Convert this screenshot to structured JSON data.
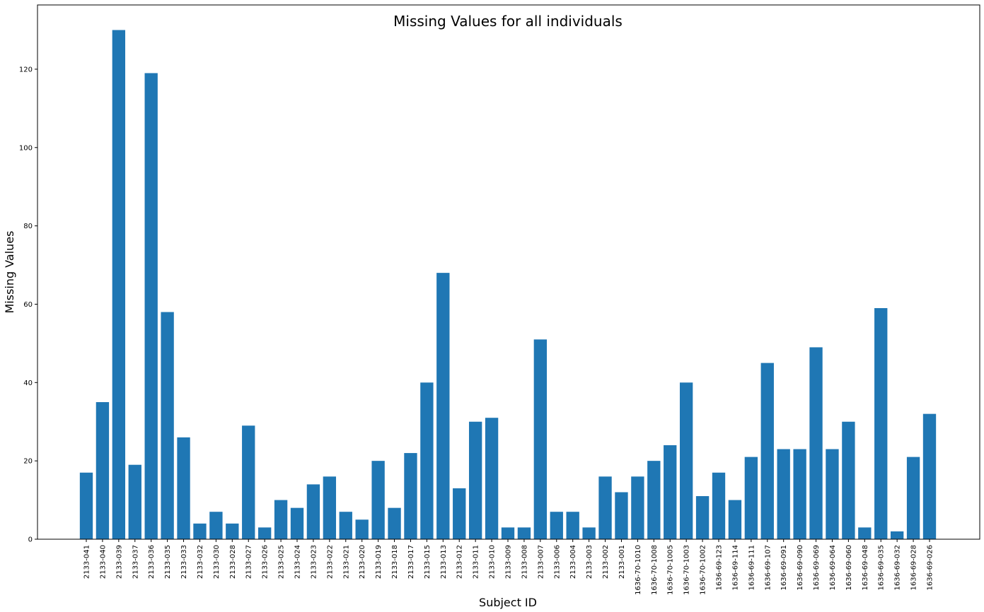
{
  "chart_data": {
    "type": "bar",
    "title": "Missing Values for all individuals",
    "xlabel": "Subject ID",
    "ylabel": "Missing Values",
    "ylim": [
      0,
      130
    ],
    "yticks": [
      0,
      20,
      40,
      60,
      80,
      100,
      120
    ],
    "grid": false,
    "bar_color": "#1f77b4",
    "categories": [
      "2133-041",
      "2133-040",
      "2133-039",
      "2133-037",
      "2133-036",
      "2133-035",
      "2133-033",
      "2133-032",
      "2133-030",
      "2133-028",
      "2133-027",
      "2133-026",
      "2133-025",
      "2133-024",
      "2133-023",
      "2133-022",
      "2133-021",
      "2133-020",
      "2133-019",
      "2133-018",
      "2133-017",
      "2133-015",
      "2133-013",
      "2133-012",
      "2133-011",
      "2133-010",
      "2133-009",
      "2133-008",
      "2133-007",
      "2133-006",
      "2133-004",
      "2133-003",
      "2133-002",
      "2133-001",
      "1636-70-1010",
      "1636-70-1008",
      "1636-70-1005",
      "1636-70-1003",
      "1636-70-1002",
      "1636-69-123",
      "1636-69-114",
      "1636-69-111",
      "1636-69-107",
      "1636-69-091",
      "1636-69-090",
      "1636-69-069",
      "1636-69-064",
      "1636-69-060",
      "1636-69-048",
      "1636-69-035",
      "1636-69-032",
      "1636-69-028",
      "1636-69-026"
    ],
    "values": [
      17,
      35,
      130,
      19,
      119,
      58,
      26,
      4,
      7,
      4,
      29,
      3,
      10,
      8,
      14,
      16,
      7,
      5,
      20,
      8,
      22,
      40,
      68,
      13,
      30,
      31,
      3,
      3,
      51,
      7,
      7,
      3,
      16,
      12,
      16,
      20,
      24,
      40,
      11,
      17,
      10,
      21,
      45,
      23,
      23,
      49,
      23,
      30,
      3,
      59,
      2,
      21,
      32
    ]
  }
}
